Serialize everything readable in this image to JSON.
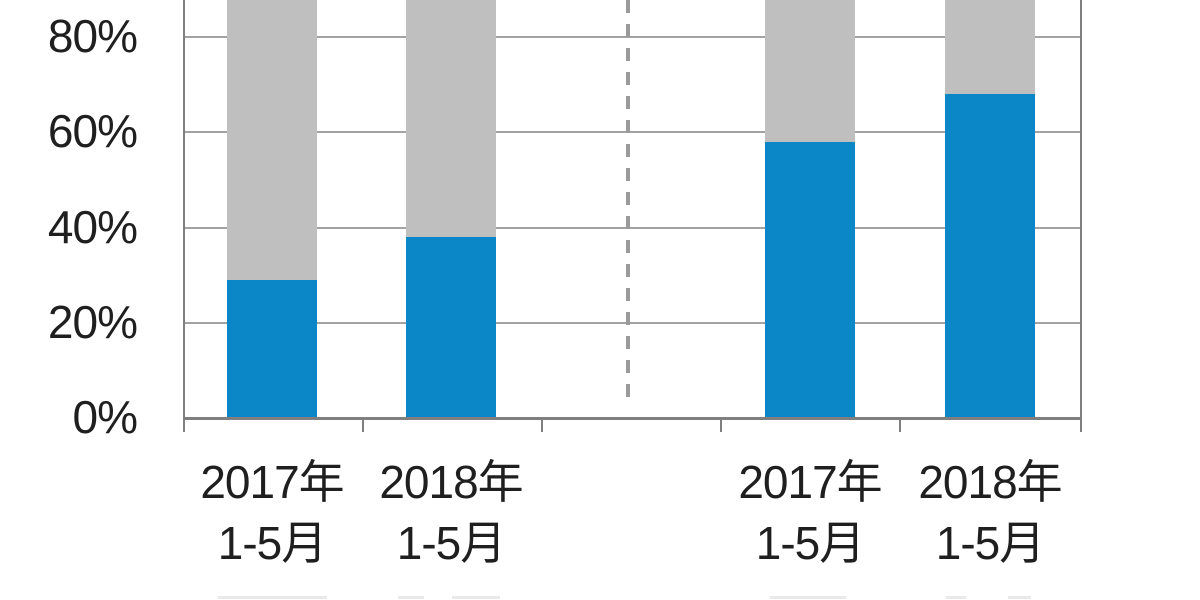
{
  "chart_data": {
    "type": "bar",
    "variant": "100-percent-stacked-column",
    "title": "",
    "xlabel": "",
    "ylabel": "",
    "categories": [
      {
        "id": "left-2017",
        "line1": "2017年",
        "line2": "1-5月",
        "group": "left"
      },
      {
        "id": "left-2018",
        "line1": "2018年",
        "line2": "1-5月",
        "group": "left"
      },
      {
        "id": "right-2017",
        "line1": "2017年",
        "line2": "1-5月",
        "group": "right"
      },
      {
        "id": "right-2018",
        "line1": "2018年",
        "line2": "1-5月",
        "group": "right"
      }
    ],
    "series": [
      {
        "name": "blue-segment",
        "color": "#0b86c6",
        "values": [
          29,
          38,
          58,
          68
        ]
      },
      {
        "name": "gray-segment",
        "color": "#bfbfbf",
        "values": [
          71,
          62,
          42,
          32
        ]
      }
    ],
    "y_axis": {
      "unit": "%",
      "tick_values": [
        80,
        60,
        40,
        20,
        0
      ],
      "tick_labels": [
        "80%",
        "60%",
        "40%",
        "20%",
        "0%"
      ],
      "ylim": [
        0,
        100
      ],
      "top_of_plot_cropped_above_view": true
    },
    "grid": true,
    "legend": "none-visible",
    "divider": "dashed vertical line between left and right groups"
  },
  "colors": {
    "bar_blue": "#0b86c6",
    "bar_gray": "#bfbfbf",
    "gridline": "#a3a3a3",
    "axis": "#7f7f7f",
    "divider_dash": "#9a9a9a",
    "text": "#1f1f1f",
    "background": "#ffffff"
  }
}
